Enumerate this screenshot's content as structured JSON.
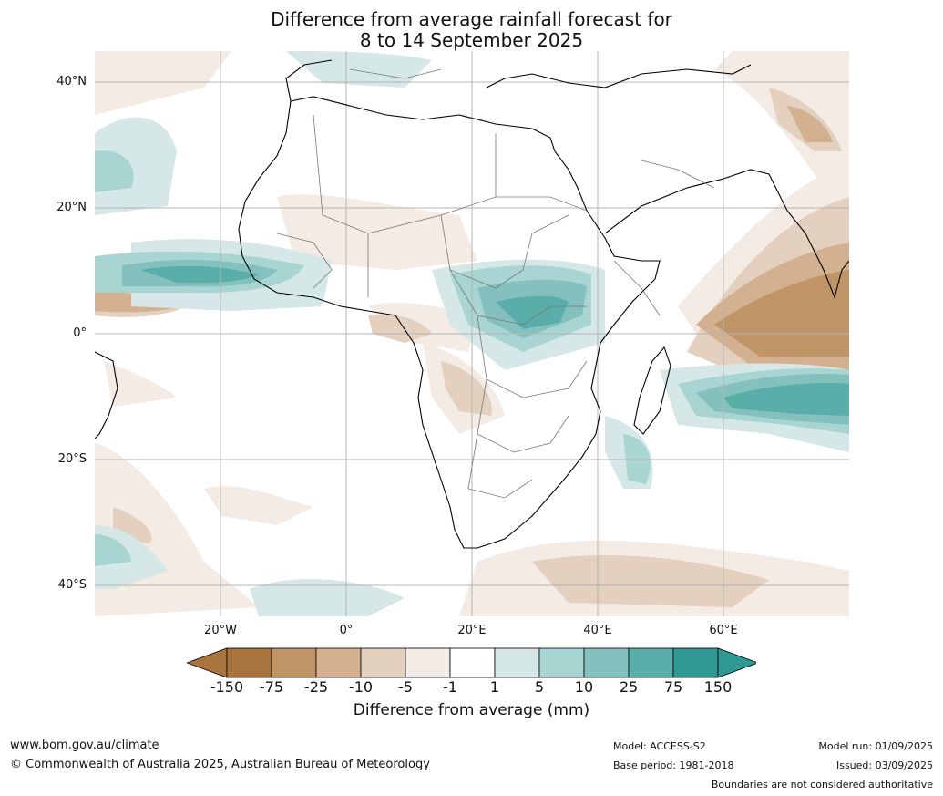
{
  "title_line1": "Difference from average rainfall forecast for",
  "title_line2": "8 to 14 September 2025",
  "lat_labels": [
    "40°N",
    "20°N",
    "0°",
    "20°S",
    "40°S"
  ],
  "lon_labels": [
    "20°W",
    "0°",
    "20°E",
    "40°E",
    "60°E"
  ],
  "colorbar": {
    "ticks": [
      "-150",
      "-75",
      "-25",
      "-10",
      "-5",
      "-1",
      "1",
      "5",
      "10",
      "25",
      "75",
      "150"
    ],
    "colors": [
      "#a8733c",
      "#bf9467",
      "#d3b090",
      "#e3d0bf",
      "#f3ebe4",
      "#ffffff",
      "#d5e8e7",
      "#a8d4d1",
      "#84c1be",
      "#5aaeaa",
      "#2f9893"
    ],
    "label": "Difference from average (mm)"
  },
  "footer": {
    "url": "www.bom.gov.au/climate",
    "copyright": "© Commonwealth of Australia 2025, Australian Bureau of Meteorology",
    "model": "Model: ACCESS-S2",
    "base_period": "Base period: 1981-2018",
    "model_run": "Model run: 01/09/2025",
    "issued": "Issued: 03/09/2025",
    "disclaimer": "Boundaries are not considered authoritative"
  }
}
